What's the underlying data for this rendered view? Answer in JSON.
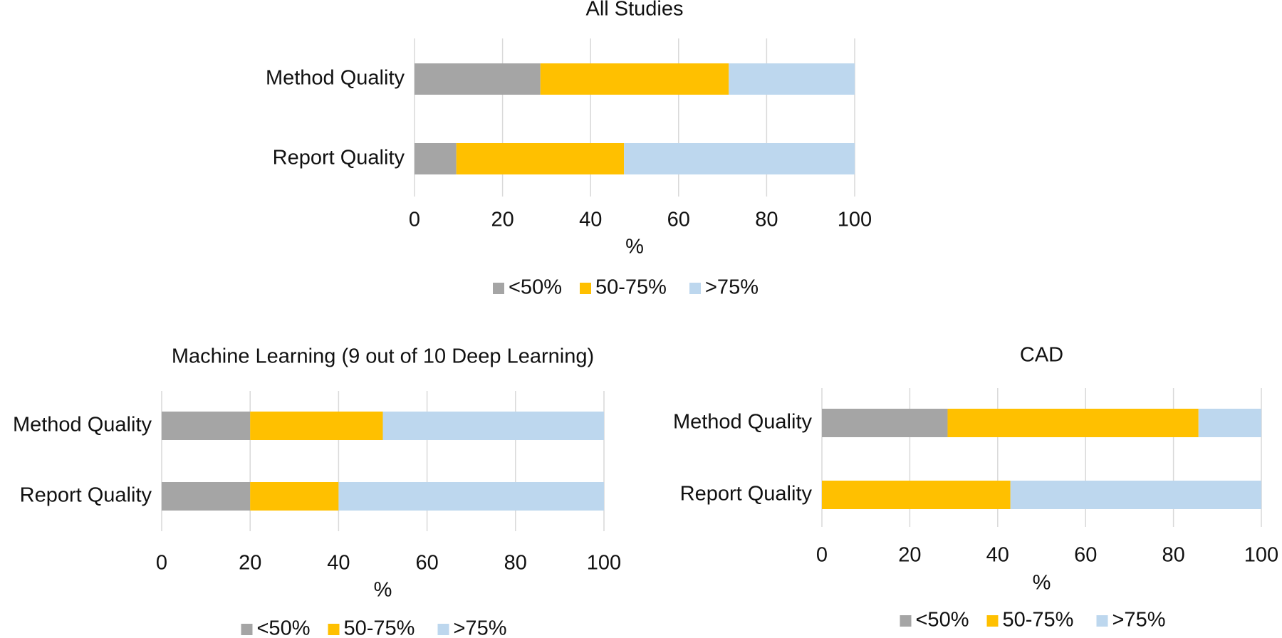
{
  "chart_data": [
    {
      "type": "bar",
      "stacked": true,
      "orientation": "horizontal",
      "title": "All Studies",
      "categories": [
        "Method Quality",
        "Report Quality"
      ],
      "series": [
        {
          "name": "<50%",
          "color": "#a5a5a5",
          "values": [
            28.6,
            9.5
          ]
        },
        {
          "name": "50-75%",
          "color": "#ffc000",
          "values": [
            42.8,
            38.1
          ]
        },
        {
          "name": ">75%",
          "color": "#bdd7ee",
          "values": [
            28.6,
            52.4
          ]
        }
      ],
      "xlabel": "%",
      "xlim": [
        0,
        100
      ],
      "xticks": [
        0,
        20,
        40,
        60,
        80,
        100
      ],
      "grid": true,
      "legend": "bottom"
    },
    {
      "type": "bar",
      "stacked": true,
      "orientation": "horizontal",
      "title": "Machine Learning (9 out of 10 Deep Learning)",
      "categories": [
        "Method Quality",
        "Report Quality"
      ],
      "series": [
        {
          "name": "<50%",
          "color": "#a5a5a5",
          "values": [
            20,
            20
          ]
        },
        {
          "name": "50-75%",
          "color": "#ffc000",
          "values": [
            30,
            20
          ]
        },
        {
          "name": ">75%",
          "color": "#bdd7ee",
          "values": [
            50,
            60
          ]
        }
      ],
      "xlabel": "%",
      "xlim": [
        0,
        100
      ],
      "xticks": [
        0,
        20,
        40,
        60,
        80,
        100
      ],
      "grid": true,
      "legend": "bottom"
    },
    {
      "type": "bar",
      "stacked": true,
      "orientation": "horizontal",
      "title": "CAD",
      "categories": [
        "Method Quality",
        "Report Quality"
      ],
      "series": [
        {
          "name": "<50%",
          "color": "#a5a5a5",
          "values": [
            28.6,
            0
          ]
        },
        {
          "name": "50-75%",
          "color": "#ffc000",
          "values": [
            57.1,
            42.9
          ]
        },
        {
          "name": ">75%",
          "color": "#bdd7ee",
          "values": [
            14.3,
            57.1
          ]
        }
      ],
      "xlabel": "%",
      "xlim": [
        0,
        100
      ],
      "xticks": [
        0,
        20,
        40,
        60,
        80,
        100
      ],
      "grid": true,
      "legend": "bottom"
    }
  ]
}
